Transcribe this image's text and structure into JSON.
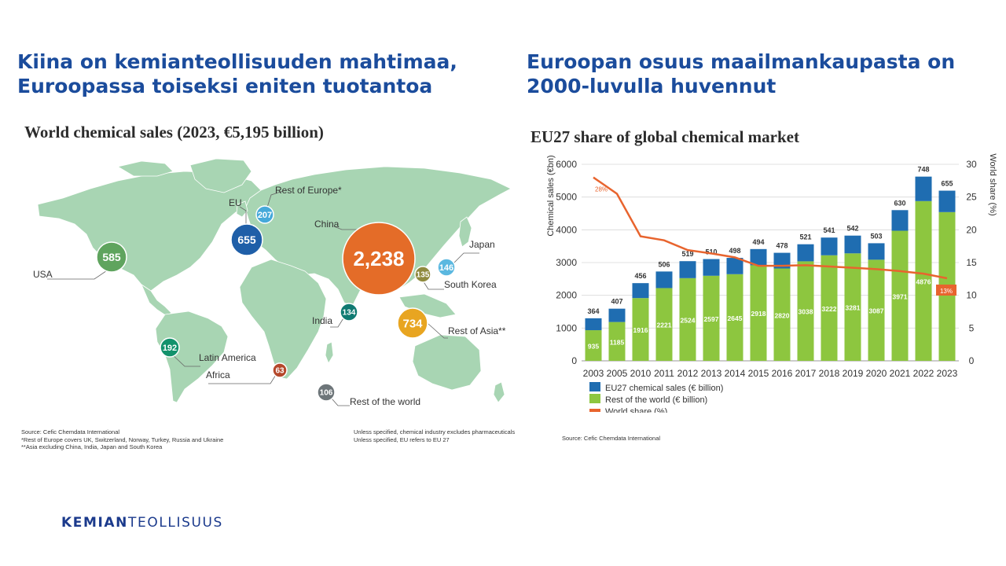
{
  "slide": {
    "title_left": "Kiina on kemianteollisuuden mahtimaa, Euroopassa toiseksi eniten tuotantoa",
    "title_right": "Euroopan osuus maailmankaupasta on 2000-luvulla huvennut",
    "logo_bold": "KEMIAN",
    "logo_light": "TEOLLISUUS"
  },
  "map": {
    "title": "World chemical sales (2023, €5,195 billion)",
    "source": "Source: Cefic Chemdata International",
    "footnote1": "*Rest of Europe covers UK, Switzerland, Norway, Turkey, Russia and Ukraine",
    "footnote2": "**Asia excluding China, India, Japan and South Korea",
    "note1": "Unless specified, chemical industry excludes pharmaceuticals",
    "note2": "Unless specified, EU refers to EU 27",
    "colors": {
      "land": "#a8d5b3",
      "china": "#e46c28",
      "eu": "#1f5fa8",
      "rest_europe": "#45a9da",
      "usa": "#5fa45e",
      "japan": "#5bb8e0",
      "south_korea": "#8f8a3e",
      "rest_asia": "#e8a521",
      "india": "#0f7a72",
      "latin_america": "#13926c",
      "africa": "#b4482b",
      "rest_world": "#6d7579"
    },
    "regions": [
      {
        "key": "china",
        "label": "China",
        "value": "2,238",
        "color": "#e46c28"
      },
      {
        "key": "rest_asia",
        "label": "Rest of Asia**",
        "value": "734",
        "color": "#e8a521"
      },
      {
        "key": "eu",
        "label": "EU",
        "value": "655",
        "color": "#1f5fa8"
      },
      {
        "key": "usa",
        "label": "USA",
        "value": "585",
        "color": "#5fa45e"
      },
      {
        "key": "rest_europe",
        "label": "Rest of Europe*",
        "value": "207",
        "color": "#45a9da"
      },
      {
        "key": "latin_america",
        "label": "Latin America",
        "value": "192",
        "color": "#13926c"
      },
      {
        "key": "japan",
        "label": "Japan",
        "value": "146",
        "color": "#5bb8e0"
      },
      {
        "key": "south_korea",
        "label": "South Korea",
        "value": "135",
        "color": "#8f8a3e"
      },
      {
        "key": "india",
        "label": "India",
        "value": "134",
        "color": "#0f7a72"
      },
      {
        "key": "rest_world",
        "label": "Rest of the world",
        "value": "106",
        "color": "#6d7579"
      },
      {
        "key": "africa",
        "label": "Africa",
        "value": "63",
        "color": "#b4482b"
      }
    ]
  },
  "chart_data": {
    "type": "bar",
    "stacked": true,
    "title": "EU27 share of global chemical market",
    "ylabel": "Chemical sales (€bn)",
    "y2label": "World share (%)",
    "ylim": [
      0,
      6000
    ],
    "y2lim": [
      0,
      30
    ],
    "yticks": [
      0,
      1000,
      2000,
      3000,
      4000,
      5000,
      6000
    ],
    "y2ticks": [
      0,
      5,
      10,
      15,
      20,
      25,
      30
    ],
    "grid": true,
    "legend_position": "bottom-left",
    "categories": [
      "2003",
      "2005",
      "2010",
      "2011",
      "2012",
      "2013",
      "2014",
      "2015",
      "2016",
      "2017",
      "2018",
      "2019",
      "2020",
      "2021",
      "2022",
      "2023"
    ],
    "series": [
      {
        "name": "Rest of the world (€ billion)",
        "color": "#8dc63f",
        "values": [
          935,
          1185,
          1916,
          2221,
          2524,
          2597,
          2645,
          2918,
          2820,
          3038,
          3222,
          3281,
          3087,
          3971,
          4876,
          4540
        ]
      },
      {
        "name": "EU27 chemical sales (€ billion)",
        "color": "#1f6db1",
        "values": [
          364,
          407,
          456,
          506,
          519,
          510,
          498,
          494,
          478,
          521,
          541,
          542,
          503,
          630,
          748,
          655
        ]
      }
    ],
    "line": {
      "name": "World share (%)",
      "color": "#e8642e",
      "values": [
        28,
        25.5,
        19,
        18.4,
        16.9,
        16.4,
        15.8,
        14.5,
        14.5,
        14.6,
        14.4,
        14.2,
        14,
        13.7,
        13.3,
        12.6
      ]
    },
    "annotations": {
      "first": "28%",
      "last": "13%"
    },
    "source": "Source: Cefic Chemdata International"
  }
}
